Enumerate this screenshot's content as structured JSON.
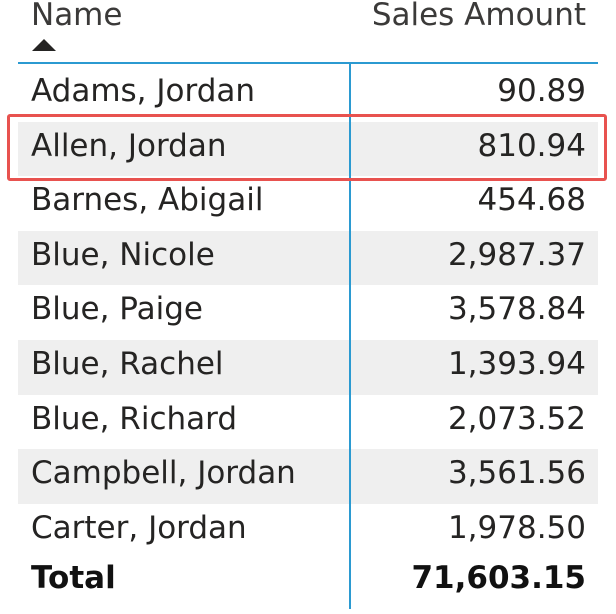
{
  "table": {
    "columns": [
      {
        "label": "Name",
        "sorted": "ascending"
      },
      {
        "label": "Sales Amount"
      }
    ],
    "rows": [
      {
        "name": "Adams, Jordan",
        "amount": "90.89"
      },
      {
        "name": "Allen, Jordan",
        "amount": "810.94",
        "highlighted": true
      },
      {
        "name": "Barnes, Abigail",
        "amount": "454.68"
      },
      {
        "name": "Blue, Nicole",
        "amount": "2,987.37"
      },
      {
        "name": "Blue, Paige",
        "amount": "3,578.84"
      },
      {
        "name": "Blue, Rachel",
        "amount": "1,393.94"
      },
      {
        "name": "Blue, Richard",
        "amount": "2,073.52"
      },
      {
        "name": "Campbell, Jordan",
        "amount": "3,561.56"
      },
      {
        "name": "Carter, Jordan",
        "amount": "1,978.50"
      }
    ],
    "total": {
      "label": "Total",
      "amount": "71,603.15"
    }
  },
  "colors": {
    "divider": "#2b9ad1",
    "highlight_border": "#e8524f",
    "row_shade": "#efefef",
    "text": "#252423"
  },
  "icons": {
    "sort": "sort-ascending-icon"
  }
}
